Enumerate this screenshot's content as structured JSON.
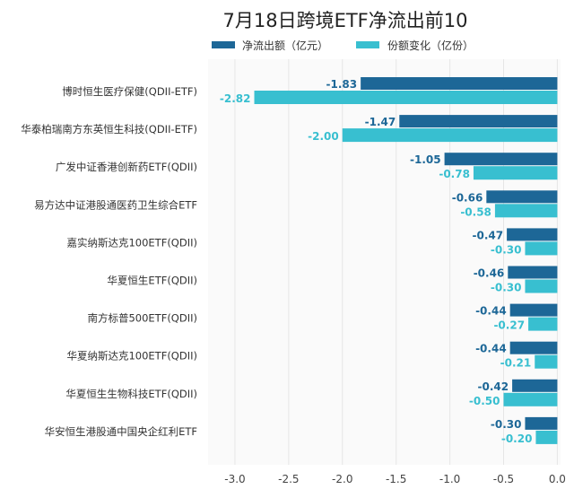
{
  "chart_data": {
    "type": "bar",
    "orientation": "horizontal",
    "title": "7月18日跨境ETF净流出前10",
    "categories": [
      "博时恒生医疗保健(QDII-ETF)",
      "华泰柏瑞南方东英恒生科技(QDII-ETF)",
      "广发中证香港创新药ETF(QDII)",
      "易方达中证港股通医药卫生综合ETF",
      "嘉实纳斯达克100ETF(QDII)",
      "华夏恒生ETF(QDII)",
      "南方标普500ETF(QDII)",
      "华夏纳斯达克100ETF(QDII)",
      "华夏恒生生物科技ETF(QDII)",
      "华安恒生港股通中国央企红利ETF"
    ],
    "series": [
      {
        "name": "净流出额（亿元）",
        "color": "#1d6797",
        "values": [
          -1.83,
          -1.47,
          -1.05,
          -0.66,
          -0.47,
          -0.46,
          -0.44,
          -0.44,
          -0.42,
          -0.3
        ],
        "labels": [
          "-1.83",
          "-1.47",
          "-1.05",
          "-0.66",
          "-0.47",
          "-0.46",
          "-0.44",
          "-0.44",
          "-0.42",
          "-0.30"
        ]
      },
      {
        "name": "份额变化（亿份）",
        "color": "#38bfd0",
        "values": [
          -2.82,
          -2.0,
          -0.78,
          -0.58,
          -0.3,
          -0.3,
          -0.27,
          -0.21,
          -0.5,
          -0.2
        ],
        "labels": [
          "-2.82",
          "-2.00",
          "-0.78",
          "-0.58",
          "-0.30",
          "-0.30",
          "-0.27",
          "-0.21",
          "-0.50",
          "-0.20"
        ]
      }
    ],
    "xticks": [
      "-3.0",
      "-2.5",
      "-2.0",
      "-1.5",
      "-1.0",
      "-0.5",
      "0.0"
    ],
    "xtick_values": [
      -3.0,
      -2.5,
      -2.0,
      -1.5,
      -1.0,
      -0.5,
      0.0
    ],
    "xlim": [
      -3.25,
      0.03
    ],
    "grid": true,
    "legend": "top"
  }
}
